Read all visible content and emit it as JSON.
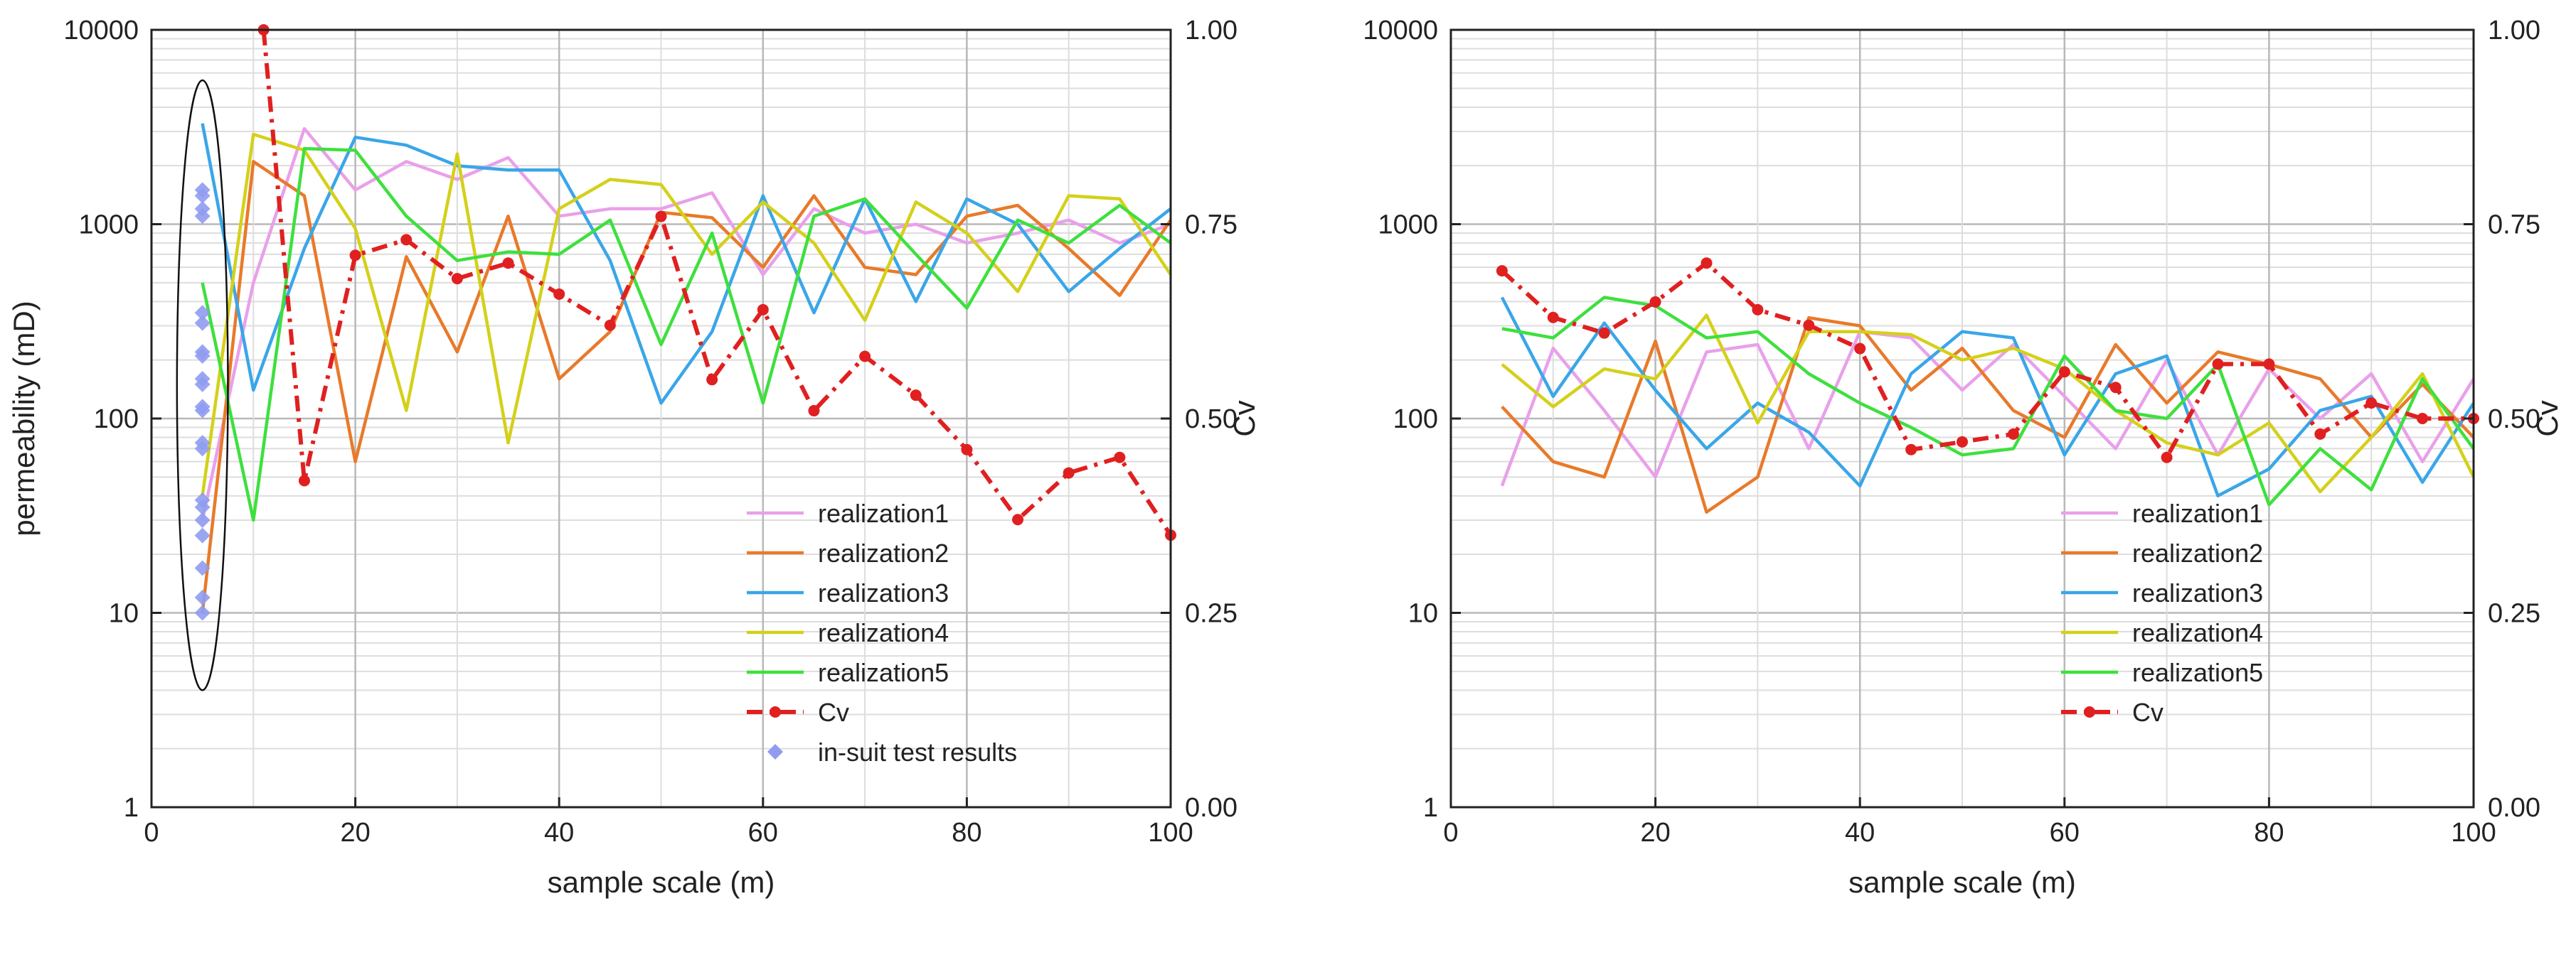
{
  "chart_data": [
    {
      "type": "line",
      "xlabel": "sample scale (m)",
      "ylabel": "permeability (mD)",
      "y2label": "Cv",
      "xlim": [
        0,
        100
      ],
      "ylim": [
        1,
        10000
      ],
      "yscale": "log",
      "y2lim": [
        0,
        1
      ],
      "x_ticks": [
        "0",
        "20",
        "40",
        "60",
        "80",
        "100"
      ],
      "y_ticks": [
        "1",
        "10",
        "100",
        "1000",
        "10000"
      ],
      "y2_ticks": [
        "0.00",
        "0.25",
        "0.50",
        "0.75",
        "1.00"
      ],
      "legend_position": "bottom-right",
      "series": [
        {
          "name": "realization1",
          "color": "#e9a0ea",
          "x": [
            5,
            10,
            15,
            20,
            25,
            30,
            35,
            40,
            45,
            50,
            55,
            60,
            65,
            70,
            75,
            80,
            85,
            90,
            95,
            100
          ],
          "values": [
            30,
            500,
            3100,
            1500,
            2100,
            1700,
            2200,
            1100,
            1200,
            1200,
            1450,
            550,
            1200,
            900,
            1000,
            800,
            900,
            1050,
            800,
            1000
          ]
        },
        {
          "name": "realization2",
          "color": "#e87a2a",
          "x": [
            5,
            10,
            15,
            20,
            25,
            30,
            35,
            40,
            45,
            50,
            55,
            60,
            65,
            70,
            75,
            80,
            85,
            90,
            95,
            100
          ],
          "values": [
            10,
            2100,
            1400,
            60,
            680,
            220,
            1100,
            160,
            280,
            1150,
            1080,
            600,
            1400,
            600,
            550,
            1100,
            1250,
            750,
            430,
            1050
          ]
        },
        {
          "name": "realization3",
          "color": "#3aa6e8",
          "x": [
            5,
            10,
            15,
            20,
            25,
            30,
            35,
            40,
            45,
            50,
            55,
            60,
            65,
            70,
            75,
            80,
            85,
            90,
            95,
            100
          ],
          "values": [
            3300,
            140,
            750,
            2800,
            2550,
            2000,
            1900,
            1900,
            650,
            120,
            280,
            1400,
            350,
            1350,
            400,
            1350,
            1000,
            450,
            750,
            1200
          ]
        },
        {
          "name": "realization4",
          "color": "#d4d01a",
          "x": [
            5,
            10,
            15,
            20,
            25,
            30,
            35,
            40,
            45,
            50,
            55,
            60,
            65,
            70,
            75,
            80,
            85,
            90,
            95,
            100
          ],
          "values": [
            40,
            2900,
            2400,
            950,
            110,
            2300,
            75,
            1200,
            1700,
            1600,
            700,
            1300,
            800,
            320,
            1300,
            900,
            450,
            1400,
            1350,
            550
          ]
        },
        {
          "name": "realization5",
          "color": "#3ee03e",
          "x": [
            5,
            10,
            15,
            20,
            25,
            30,
            35,
            40,
            45,
            50,
            55,
            60,
            65,
            70,
            75,
            80,
            85,
            90,
            95,
            100
          ],
          "values": [
            500,
            30,
            2450,
            2400,
            1100,
            650,
            720,
            700,
            1050,
            240,
            900,
            120,
            1100,
            1350,
            700,
            370,
            1050,
            800,
            1250,
            800
          ]
        },
        {
          "name": "Cv",
          "axis": "right",
          "color": "#e02020",
          "dashed": true,
          "x": [
            11,
            15,
            20,
            25,
            30,
            35,
            40,
            45,
            50,
            55,
            60,
            65,
            70,
            75,
            80,
            85,
            90,
            95,
            100
          ],
          "values": [
            1.0,
            0.42,
            0.71,
            0.73,
            0.68,
            0.7,
            0.66,
            0.62,
            0.76,
            0.55,
            0.64,
            0.51,
            0.58,
            0.53,
            0.46,
            0.37,
            0.43,
            0.45,
            0.35
          ]
        }
      ],
      "scatter": {
        "name": "in-suit test results",
        "color": "#8f9cf0",
        "x": [
          5,
          5,
          5,
          5,
          5,
          5,
          5,
          5,
          5,
          5,
          5,
          5,
          5,
          5,
          5,
          5,
          5,
          5,
          5,
          5,
          5
        ],
        "values": [
          10,
          12,
          17,
          25,
          30,
          35,
          38,
          70,
          75,
          110,
          115,
          150,
          160,
          210,
          220,
          310,
          350,
          1100,
          1200,
          1400,
          1500
        ]
      },
      "ellipse": {
        "cx": 5,
        "y_top": 5500,
        "y_bottom": 4,
        "rx_units": 2.5
      },
      "legend": [
        "realization1",
        "realization2",
        "realization3",
        "realization4",
        "realization5",
        "Cv",
        "in-suit test results"
      ]
    },
    {
      "type": "line",
      "xlabel": "sample scale (m)",
      "ylabel": "",
      "y2label": "Cv",
      "xlim": [
        0,
        100
      ],
      "ylim": [
        1,
        10000
      ],
      "yscale": "log",
      "y2lim": [
        0,
        1
      ],
      "x_ticks": [
        "0",
        "20",
        "40",
        "60",
        "80",
        "100"
      ],
      "y_ticks": [
        "1",
        "10",
        "100",
        "1000",
        "10000"
      ],
      "y2_ticks": [
        "0.00",
        "0.25",
        "0.50",
        "0.75",
        "1.00"
      ],
      "legend_position": "bottom-right",
      "series": [
        {
          "name": "realization1",
          "color": "#e9a0ea",
          "x": [
            5,
            10,
            15,
            20,
            25,
            30,
            35,
            40,
            45,
            50,
            55,
            60,
            65,
            70,
            75,
            80,
            85,
            90,
            95,
            100
          ],
          "values": [
            45,
            230,
            110,
            50,
            220,
            240,
            70,
            280,
            260,
            140,
            240,
            130,
            70,
            200,
            65,
            180,
            100,
            170,
            60,
            160
          ]
        },
        {
          "name": "realization2",
          "color": "#e87a2a",
          "x": [
            5,
            10,
            15,
            20,
            25,
            30,
            35,
            40,
            45,
            50,
            55,
            60,
            65,
            70,
            75,
            80,
            85,
            90,
            95,
            100
          ],
          "values": [
            115,
            60,
            50,
            250,
            33,
            50,
            330,
            300,
            140,
            230,
            110,
            80,
            240,
            120,
            220,
            190,
            160,
            80,
            150,
            80
          ]
        },
        {
          "name": "realization3",
          "color": "#3aa6e8",
          "x": [
            5,
            10,
            15,
            20,
            25,
            30,
            35,
            40,
            45,
            50,
            55,
            60,
            65,
            70,
            75,
            80,
            85,
            90,
            95,
            100
          ],
          "values": [
            420,
            130,
            310,
            140,
            70,
            120,
            85,
            45,
            170,
            280,
            260,
            65,
            170,
            210,
            40,
            55,
            110,
            130,
            47,
            120
          ]
        },
        {
          "name": "realization4",
          "color": "#d4d01a",
          "x": [
            5,
            10,
            15,
            20,
            25,
            30,
            35,
            40,
            45,
            50,
            55,
            60,
            65,
            70,
            75,
            80,
            85,
            90,
            95,
            100
          ],
          "values": [
            190,
            115,
            180,
            160,
            340,
            95,
            280,
            280,
            270,
            200,
            230,
            180,
            110,
            75,
            65,
            95,
            42,
            80,
            170,
            50
          ]
        },
        {
          "name": "realization5",
          "color": "#3ee03e",
          "x": [
            5,
            10,
            15,
            20,
            25,
            30,
            35,
            40,
            45,
            50,
            55,
            60,
            65,
            70,
            75,
            80,
            85,
            90,
            95,
            100
          ],
          "values": [
            290,
            260,
            420,
            380,
            260,
            280,
            170,
            120,
            90,
            65,
            70,
            210,
            110,
            100,
            190,
            36,
            70,
            43,
            160,
            70
          ]
        },
        {
          "name": "Cv",
          "axis": "right",
          "color": "#e02020",
          "dashed": true,
          "x": [
            5,
            10,
            15,
            20,
            25,
            30,
            35,
            40,
            45,
            50,
            55,
            60,
            65,
            70,
            75,
            80,
            85,
            90,
            95,
            100
          ],
          "values": [
            0.69,
            0.63,
            0.61,
            0.65,
            0.7,
            0.64,
            0.62,
            0.59,
            0.46,
            0.47,
            0.48,
            0.56,
            0.54,
            0.45,
            0.57,
            0.57,
            0.48,
            0.52,
            0.5,
            0.5
          ]
        }
      ],
      "legend": [
        "realization1",
        "realization2",
        "realization3",
        "realization4",
        "realization5",
        "Cv"
      ]
    }
  ]
}
